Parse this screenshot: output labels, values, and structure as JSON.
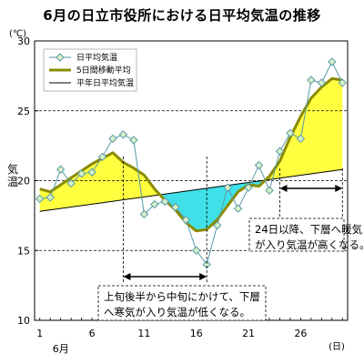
{
  "title": "6月の日立市役所における日平均気温の推移",
  "chart_data": {
    "type": "line",
    "unit_label": "(℃)",
    "ylabel": "気温",
    "xlabel_unit": "(日)",
    "month_label": "6月",
    "ylim": [
      10,
      30
    ],
    "xlim": [
      1,
      30
    ],
    "yticks": [
      10,
      15,
      20,
      25,
      30
    ],
    "xticks": [
      1,
      6,
      11,
      16,
      21,
      26
    ],
    "grid": "horizontal dashed at 15, 20, 25",
    "legend_position": "top-left",
    "series": [
      {
        "name": "日平均気温",
        "color": "#5a9aa8",
        "marker_fill": "#d8f0c8",
        "x": [
          1,
          2,
          3,
          4,
          5,
          6,
          7,
          8,
          9,
          10,
          11,
          12,
          13,
          14,
          15,
          16,
          17,
          18,
          19,
          20,
          21,
          22,
          23,
          24,
          25,
          26,
          27,
          28,
          29,
          30
        ],
        "values": [
          18.7,
          18.8,
          20.8,
          19.8,
          20.5,
          20.6,
          21.7,
          23.0,
          23.3,
          22.9,
          17.6,
          18.3,
          18.5,
          18.1,
          17.2,
          15.0,
          14.0,
          16.8,
          19.5,
          18.0,
          19.5,
          21.1,
          19.3,
          22.1,
          23.4,
          23.0,
          27.2,
          27.0,
          28.5,
          27.0
        ]
      },
      {
        "name": "5日間移動平均",
        "color": "#8b8b00",
        "x": [
          1,
          2,
          3,
          4,
          5,
          6,
          7,
          8,
          9,
          10,
          11,
          12,
          13,
          14,
          15,
          16,
          17,
          18,
          19,
          20,
          21,
          22,
          23,
          24,
          25,
          26,
          27,
          28,
          29,
          30
        ],
        "values": [
          19.4,
          19.2,
          19.7,
          20.2,
          20.7,
          21.2,
          21.6,
          22.0,
          21.3,
          20.9,
          20.4,
          19.4,
          18.6,
          17.9,
          17.0,
          16.4,
          16.5,
          17.2,
          18.2,
          19.2,
          19.7,
          19.6,
          20.3,
          21.4,
          23.1,
          24.6,
          25.9,
          26.7,
          27.3,
          27.2
        ]
      },
      {
        "name": "平年日平均気温",
        "color": "#000000",
        "x": [
          1,
          30
        ],
        "values": [
          17.8,
          20.8
        ]
      }
    ],
    "fill_colors": {
      "above_normal": "#ffff40",
      "below_normal": "#40e0e8"
    },
    "annotations": [
      {
        "text_lines": [
          "上旬後半から中旬にかけて、下層",
          "へ寒気が入り気温が低くなる。"
        ],
        "span_x": [
          9,
          17
        ]
      },
      {
        "text_lines": [
          "24日以降、下層へ暖気",
          "が入り気温が高くなる。"
        ],
        "span_x": [
          24,
          30
        ]
      }
    ]
  }
}
